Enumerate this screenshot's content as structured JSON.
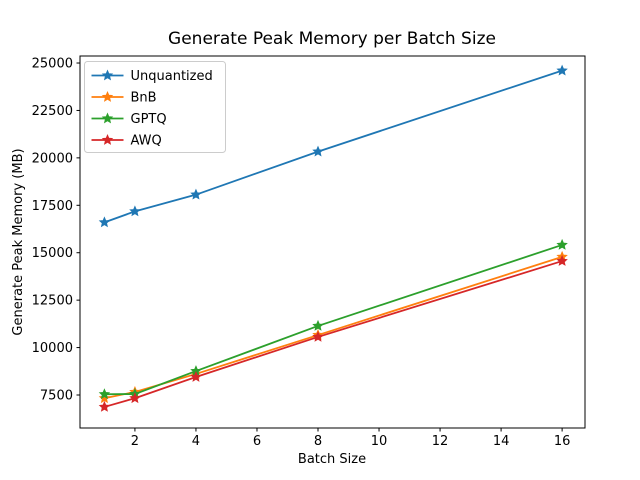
{
  "chart_data": {
    "type": "line",
    "title": "Generate Peak Memory per Batch Size",
    "xlabel": "Batch Size",
    "ylabel": "Generate Peak Memory (MB)",
    "x": [
      1,
      2,
      4,
      8,
      16
    ],
    "series": [
      {
        "name": "Unquantized",
        "color": "#1f77b4",
        "values": [
          16600,
          17180,
          18060,
          20330,
          24600
        ]
      },
      {
        "name": "BnB",
        "color": "#ff7f0e",
        "values": [
          7330,
          7660,
          8610,
          10660,
          14780
        ]
      },
      {
        "name": "GPTQ",
        "color": "#2ca02c",
        "values": [
          7540,
          7550,
          8760,
          11140,
          15410
        ]
      },
      {
        "name": "AWQ",
        "color": "#d62728",
        "values": [
          6870,
          7330,
          8450,
          10560,
          14560
        ]
      }
    ],
    "xticks": [
      2,
      4,
      6,
      8,
      10,
      12,
      14,
      16
    ],
    "yticks": [
      7500,
      10000,
      12500,
      15000,
      17500,
      20000,
      22500,
      25000
    ],
    "xlim": [
      0.2,
      16.75
    ],
    "ylim": [
      5760,
      25370
    ],
    "grid": false,
    "legend_position": "upper left",
    "marker": "star",
    "frame_color": "#000000",
    "legend_border_color": "#cccccc"
  }
}
